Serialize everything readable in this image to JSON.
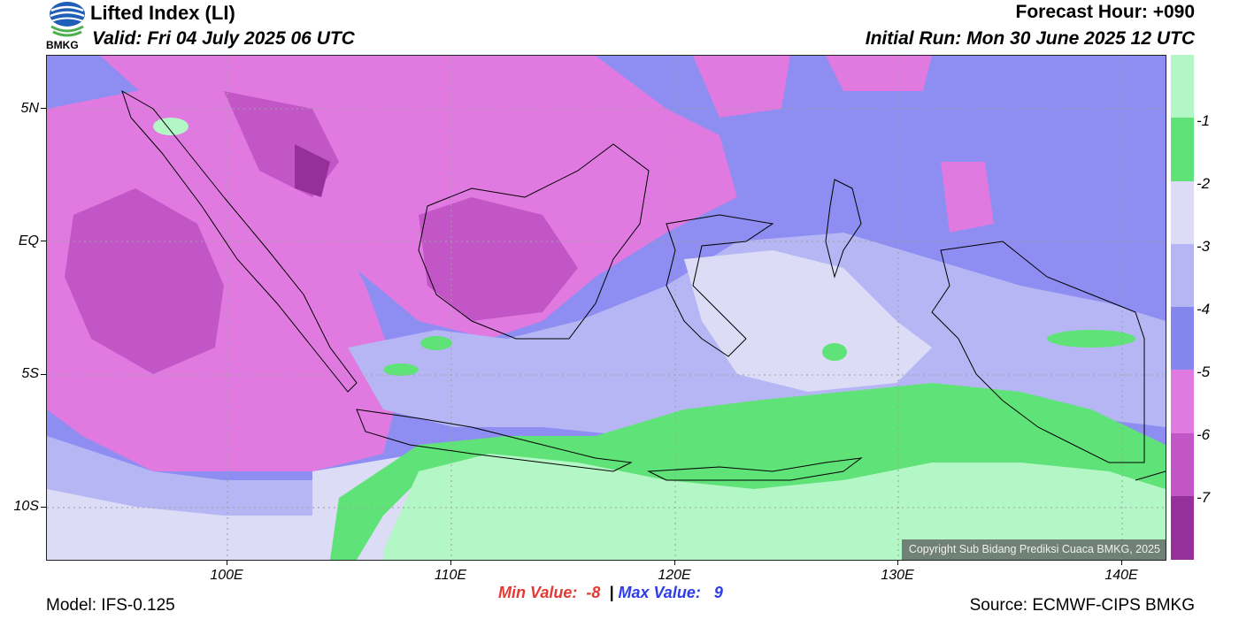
{
  "header": {
    "title": "Lifted Index (LI)",
    "valid": "Valid: Fri 04 July 2025 06 UTC",
    "forecast_hour": "Forecast Hour: +090",
    "initial_run": "Initial Run: Mon 30 June 2025 12 UTC"
  },
  "logo": {
    "text": "BMKG",
    "icon": "bmkg-logo"
  },
  "map": {
    "lat_labels": [
      "5N",
      "EQ",
      "5S",
      "10S"
    ],
    "lon_labels": [
      "100E",
      "110E",
      "120E",
      "130E",
      "140E"
    ],
    "copyright": "Copyright Sub Bidang Prediksi Cuaca BMKG, 2025"
  },
  "colorbar": {
    "labels": [
      "-1",
      "-2",
      "-3",
      "-4",
      "-5",
      "-6",
      "-7"
    ],
    "colors": [
      "#b3f7c6",
      "#5fe378",
      "#dcdcf6",
      "#b6b6f4",
      "#8585ee",
      "#e07ae0",
      "#c256c6",
      "#95309a"
    ]
  },
  "stats": {
    "min_label": "Min Value:",
    "min_value": "-8",
    "separator": "|",
    "max_label": "Max Value:",
    "max_value": "9"
  },
  "footer": {
    "model": "Model: IFS-0.125",
    "source": "Source: ECMWF-CIPS BMKG"
  }
}
